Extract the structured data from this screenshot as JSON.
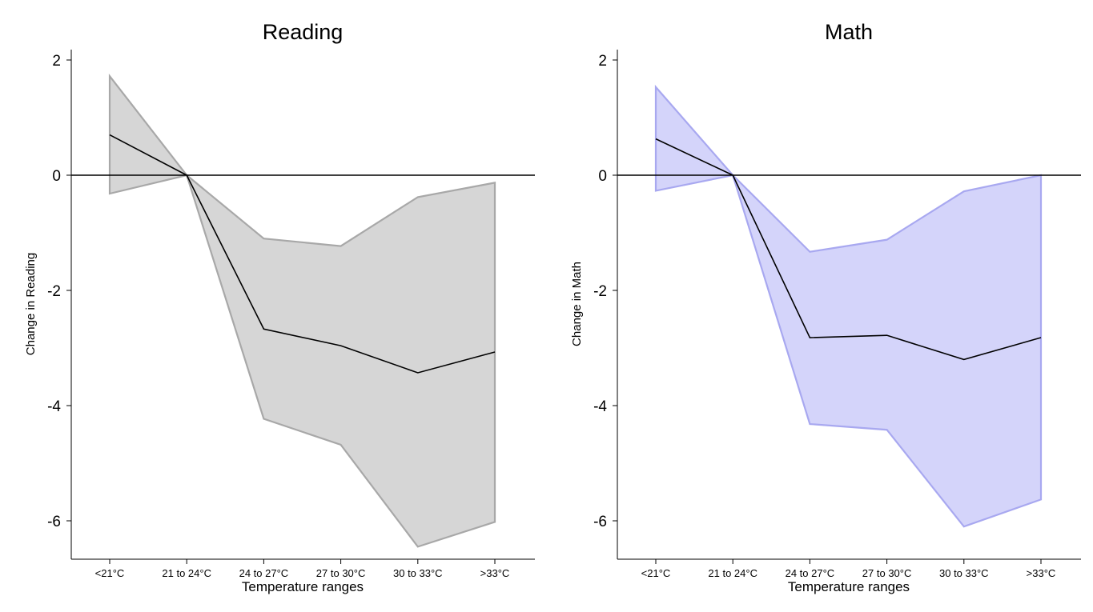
{
  "chart_data": [
    {
      "type": "area",
      "title": "Reading",
      "xlabel": "Temperature ranges",
      "ylabel": "Change in Reading",
      "categories": [
        "<21°C",
        "21 to 24°C",
        "24 to 27°C",
        "27 to 30°C",
        "30 to 33°C",
        ">33°C"
      ],
      "yticks": [
        "2",
        "0",
        "-2",
        "-4",
        "-6"
      ],
      "ylim": [
        -6.75,
        2.2
      ],
      "series": [
        {
          "values": [
            0.7,
            0.0,
            -2.67,
            -2.96,
            -3.43,
            -3.07
          ]
        }
      ],
      "ci_lower": [
        -0.32,
        0.0,
        -4.23,
        -4.68,
        -6.45,
        -6.02
      ],
      "ci_upper": [
        1.72,
        0.0,
        -1.1,
        -1.23,
        -0.38,
        -0.13
      ],
      "band_fill": "#d6d6d6",
      "band_stroke": "#a8a8a8",
      "line_color": "#000000",
      "zero_line": true,
      "grid": false
    },
    {
      "type": "area",
      "title": "Math",
      "xlabel": "Temperature ranges",
      "ylabel": "Change in Math",
      "categories": [
        "<21°C",
        "21 to 24°C",
        "24 to 27°C",
        "27 to 30°C",
        "30 to 33°C",
        ">33°C"
      ],
      "yticks": [
        "2",
        "0",
        "-2",
        "-4",
        "-6"
      ],
      "ylim": [
        -6.75,
        2.2
      ],
      "series": [
        {
          "values": [
            0.63,
            0.0,
            -2.82,
            -2.78,
            -3.2,
            -2.82
          ]
        }
      ],
      "ci_lower": [
        -0.27,
        0.0,
        -4.32,
        -4.42,
        -6.1,
        -5.63
      ],
      "ci_upper": [
        1.53,
        0.0,
        -1.33,
        -1.12,
        -0.28,
        0.0
      ],
      "band_fill": "#d4d4fa",
      "band_stroke": "#a8a8f0",
      "line_color": "#000000",
      "zero_line": true,
      "grid": false
    }
  ]
}
